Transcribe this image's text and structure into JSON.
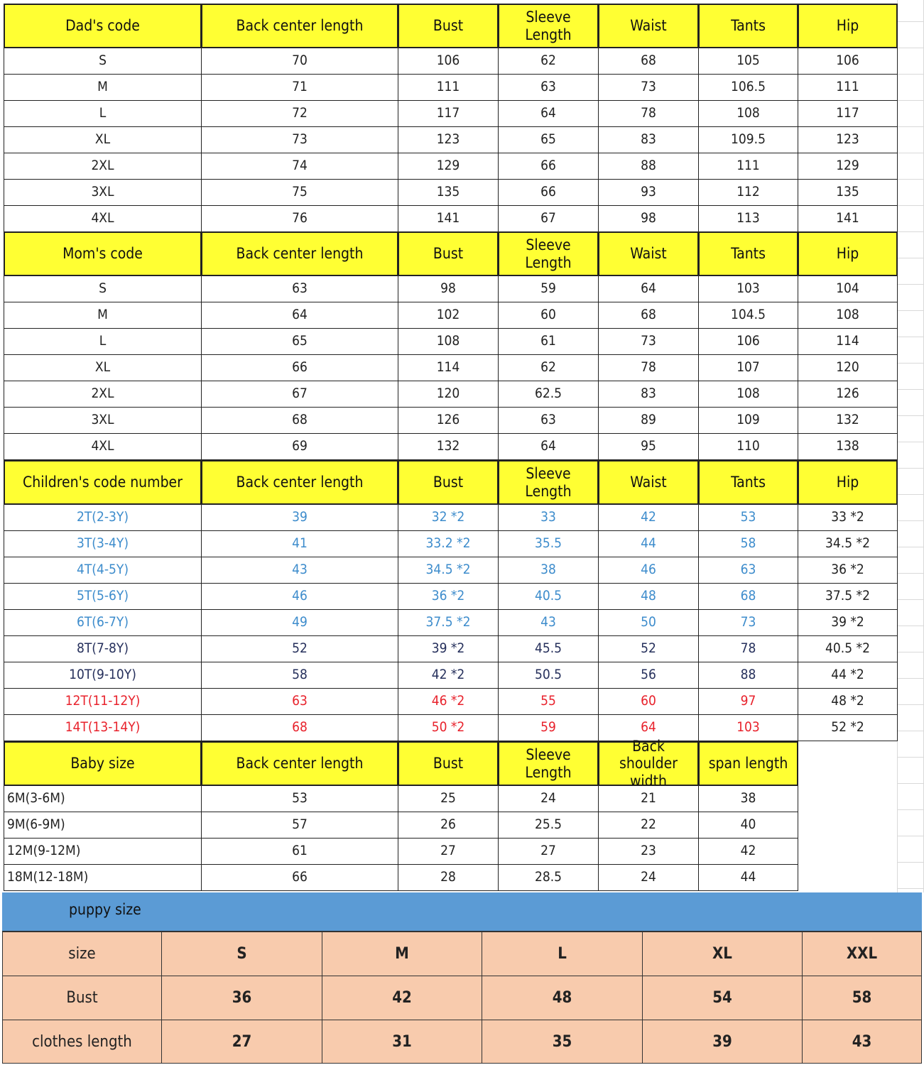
{
  "colors": {
    "header_bg": "#ffff33",
    "puppy_bar": "#5b9bd5",
    "puppy_cells": "#f8cbad",
    "blue_text": "#3d8ccc",
    "navy_text": "#26305c",
    "red_text": "#e8222c"
  },
  "sections": [
    {
      "id": "dad",
      "header": [
        "Dad's code",
        "Back center length",
        "Bust",
        "Sleeve\nLength",
        "Waist",
        "Tants",
        "Hip"
      ],
      "rows": [
        {
          "cells": [
            "S",
            "70",
            "106",
            "62",
            "68",
            "105",
            "106"
          ]
        },
        {
          "cells": [
            "M",
            "71",
            "111",
            "63",
            "73",
            "106.5",
            "111"
          ]
        },
        {
          "cells": [
            "L",
            "72",
            "117",
            "64",
            "78",
            "108",
            "117"
          ]
        },
        {
          "cells": [
            "XL",
            "73",
            "123",
            "65",
            "83",
            "109.5",
            "123"
          ]
        },
        {
          "cells": [
            "2XL",
            "74",
            "129",
            "66",
            "88",
            "111",
            "129"
          ]
        },
        {
          "cells": [
            "3XL",
            "75",
            "135",
            "66",
            "93",
            "112",
            "135"
          ]
        },
        {
          "cells": [
            "4XL",
            "76",
            "141",
            "67",
            "98",
            "113",
            "141"
          ]
        }
      ]
    },
    {
      "id": "mom",
      "header": [
        "Mom's code",
        "Back center length",
        "Bust",
        "Sleeve\nLength",
        "Waist",
        "Tants",
        "Hip"
      ],
      "rows": [
        {
          "cells": [
            "S",
            "63",
            "98",
            "59",
            "64",
            "103",
            "104"
          ]
        },
        {
          "cells": [
            "M",
            "64",
            "102",
            "60",
            "68",
            "104.5",
            "108"
          ]
        },
        {
          "cells": [
            "L",
            "65",
            "108",
            "61",
            "73",
            "106",
            "114"
          ]
        },
        {
          "cells": [
            "XL",
            "66",
            "114",
            "62",
            "78",
            "107",
            "120"
          ]
        },
        {
          "cells": [
            "2XL",
            "67",
            "120",
            "62.5",
            "83",
            "108",
            "126"
          ]
        },
        {
          "cells": [
            "3XL",
            "68",
            "126",
            "63",
            "89",
            "109",
            "132"
          ]
        },
        {
          "cells": [
            "4XL",
            "69",
            "132",
            "64",
            "95",
            "110",
            "138"
          ]
        }
      ]
    },
    {
      "id": "children",
      "header": [
        "Children's code number",
        "Back center length",
        "Bust",
        "Sleeve\nLength",
        "Waist",
        "Tants",
        "Hip"
      ],
      "rows": [
        {
          "color": "blue",
          "cells": [
            "2T(2-3Y)",
            "39",
            "32 *2",
            "33",
            "42",
            "53",
            "33 *2"
          ]
        },
        {
          "color": "blue",
          "cells": [
            "3T(3-4Y)",
            "41",
            "33.2 *2",
            "35.5",
            "44",
            "58",
            "34.5 *2"
          ]
        },
        {
          "color": "blue",
          "cells": [
            "4T(4-5Y)",
            "43",
            "34.5 *2",
            "38",
            "46",
            "63",
            "36 *2"
          ]
        },
        {
          "color": "blue",
          "cells": [
            "5T(5-6Y)",
            "46",
            "36 *2",
            "40.5",
            "48",
            "68",
            "37.5 *2"
          ]
        },
        {
          "color": "blue",
          "cells": [
            "6T(6-7Y)",
            "49",
            "37.5 *2",
            "43",
            "50",
            "73",
            "39 *2"
          ]
        },
        {
          "color": "navy",
          "cells": [
            "8T(7-8Y)",
            "52",
            "39 *2",
            "45.5",
            "52",
            "78",
            "40.5 *2"
          ]
        },
        {
          "color": "navy",
          "cells": [
            "10T(9-10Y)",
            "58",
            "42 *2",
            "50.5",
            "56",
            "88",
            "44 *2"
          ]
        },
        {
          "color": "red",
          "cells": [
            "12T(11-12Y)",
            "63",
            "46 *2",
            "55",
            "60",
            "97",
            "48 *2"
          ]
        },
        {
          "color": "red",
          "cells": [
            "14T(13-14Y)",
            "68",
            "50 *2",
            "59",
            "64",
            "103",
            "52 *2"
          ]
        }
      ]
    },
    {
      "id": "baby",
      "header": [
        "Baby size",
        "Back center length",
        "Bust",
        "Sleeve\nLength",
        "Back\nshoulder width",
        "span length"
      ],
      "rows": [
        {
          "cells": [
            "6M(3-6M)",
            "53",
            "25",
            "24",
            "21",
            "38"
          ]
        },
        {
          "cells": [
            "9M(6-9M)",
            "57",
            "26",
            "25.5",
            "22",
            "40"
          ]
        },
        {
          "cells": [
            "12M(9-12M)",
            "61",
            "27",
            "27",
            "23",
            "42"
          ]
        },
        {
          "cells": [
            "18M(12-18M)",
            "66",
            "28",
            "28.5",
            "24",
            "44"
          ]
        }
      ]
    }
  ],
  "puppy": {
    "title": "puppy size",
    "rows": [
      [
        "size",
        "S",
        "M",
        "L",
        "XL",
        "XXL"
      ],
      [
        "Bust",
        "36",
        "42",
        "48",
        "54",
        "58"
      ],
      [
        "clothes length",
        "27",
        "31",
        "35",
        "39",
        "43"
      ]
    ]
  }
}
